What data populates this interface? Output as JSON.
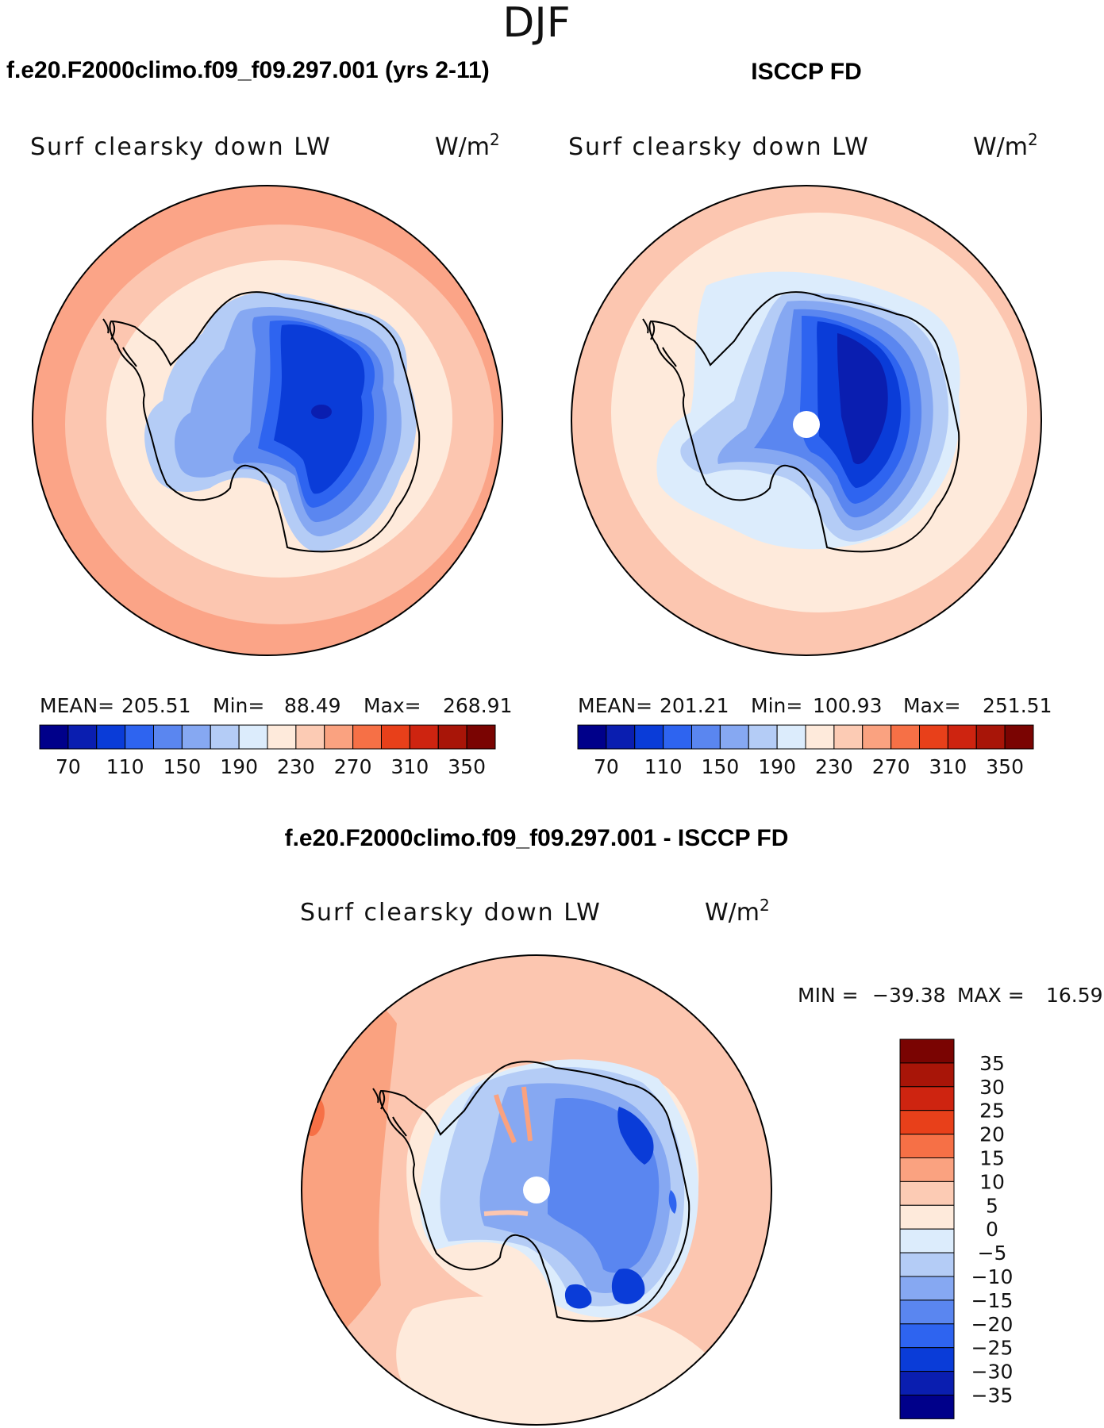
{
  "page": {
    "title": "DJF"
  },
  "colors": {
    "model_ramp": [
      "#00008a",
      "#0a1eb0",
      "#0a3cd8",
      "#2e64f0",
      "#5a86f0",
      "#86a8f2",
      "#b4ccf6",
      "#dcecfc",
      "#feeadb",
      "#fccbb4",
      "#faa280",
      "#f67046",
      "#e8401a",
      "#ce2410",
      "#a81508",
      "#7a0402"
    ],
    "diff_ramp": [
      "#00008a",
      "#0a1eb0",
      "#0a3cd8",
      "#2e64f0",
      "#5a86f0",
      "#86a8f2",
      "#b4ccf6",
      "#dcecfc",
      "#feeadb",
      "#fccbb4",
      "#faa280",
      "#f67046",
      "#e8401a",
      "#ce2410",
      "#a81508",
      "#7a0402"
    ],
    "outline": "#000000"
  },
  "panels": [
    {
      "id": "model",
      "header": "f.e20.F2000climo.f09_f09.297.001 (yrs 2-11)",
      "variable": "Surf clearsky down LW",
      "units": "W/m",
      "units_sup": "2",
      "stats": {
        "mean_label": "MEAN=",
        "mean": "205.51",
        "min_label": "Min=",
        "min": "88.49",
        "max_label": "Max=",
        "max": "268.91"
      },
      "colorbar_ticks": [
        "70",
        "110",
        "150",
        "190",
        "230",
        "270",
        "310",
        "350"
      ]
    },
    {
      "id": "obs",
      "header": "ISCCP FD",
      "variable": "Surf clearsky down LW",
      "units": "W/m",
      "units_sup": "2",
      "stats": {
        "mean_label": "MEAN=",
        "mean": "201.21",
        "min_label": "Min=",
        "min": "100.93",
        "max_label": "Max=",
        "max": "251.51"
      },
      "colorbar_ticks": [
        "70",
        "110",
        "150",
        "190",
        "230",
        "270",
        "310",
        "350"
      ]
    },
    {
      "id": "diff",
      "header": "f.e20.F2000climo.f09_f09.297.001 - ISCCP FD",
      "variable": "Surf clearsky down LW",
      "units": "W/m",
      "units_sup": "2",
      "stats": {
        "min_label": "MIN =",
        "min": "−39.38",
        "max_label": "MAX =",
        "max": "16.59"
      },
      "colorbar_ticks": [
        "35",
        "30",
        "25",
        "20",
        "15",
        "10",
        "5",
        "0",
        "−5",
        "−10",
        "−15",
        "−20",
        "−25",
        "−30",
        "−35"
      ]
    }
  ]
}
